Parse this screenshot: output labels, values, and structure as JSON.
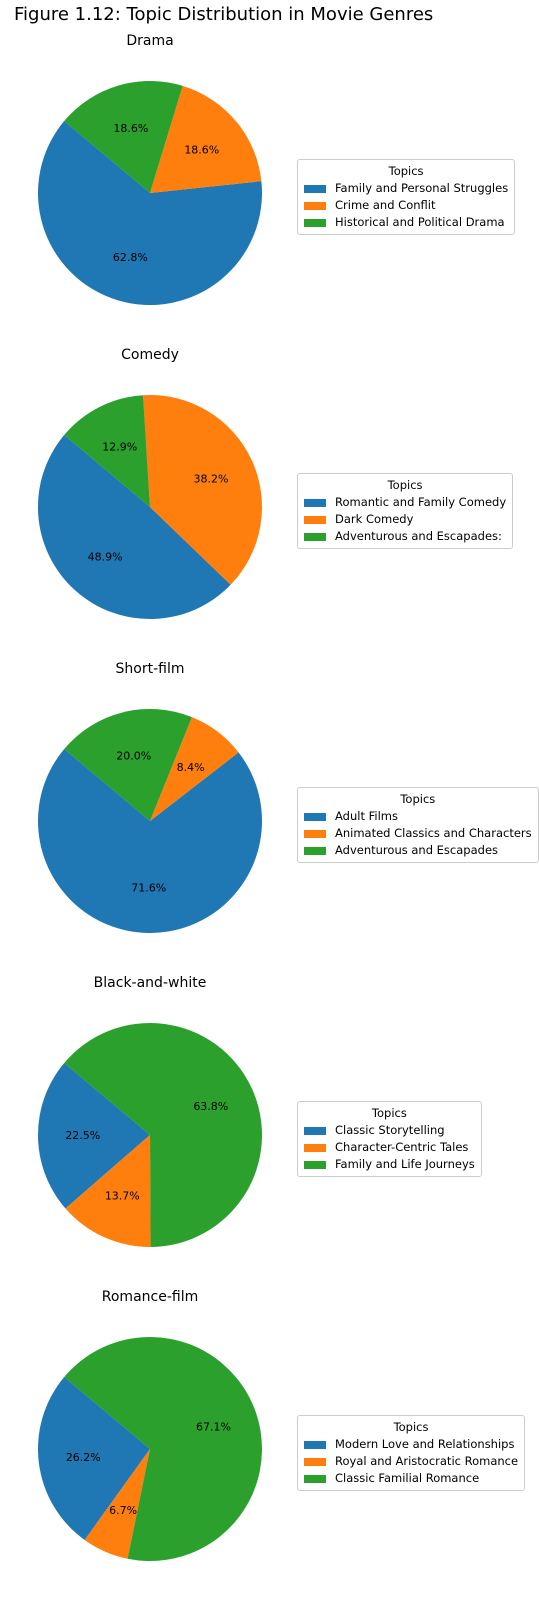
{
  "figure_title": "Figure 1.12: Topic Distribution in Movie Genres",
  "colors": [
    "#1f77b4",
    "#ff7f0e",
    "#2ca02c"
  ],
  "chart_data": [
    {
      "type": "pie",
      "title": "Drama",
      "legend_title": "Topics",
      "legend_position": "right",
      "start_angle_deg": 140,
      "labels": [
        "Family and Personal Struggles",
        "Crime and Conflit",
        "Historical and Political Drama"
      ],
      "values": [
        62.8,
        18.6,
        18.6
      ],
      "value_labels": [
        "62.8%",
        "18.6%",
        "18.6%"
      ]
    },
    {
      "type": "pie",
      "title": "Comedy",
      "legend_title": "Topics",
      "legend_position": "right",
      "start_angle_deg": 140,
      "labels": [
        "Romantic and Family Comedy",
        "Dark Comedy",
        "Adventurous and Escapades:"
      ],
      "values": [
        48.9,
        38.2,
        12.9
      ],
      "value_labels": [
        "48.9%",
        "38.2%",
        "12.9%"
      ]
    },
    {
      "type": "pie",
      "title": "Short-film",
      "legend_title": "Topics",
      "legend_position": "right",
      "start_angle_deg": 140,
      "labels": [
        "Adult Films",
        "Animated Classics and Characters",
        "Adventurous and Escapades"
      ],
      "values": [
        71.6,
        8.4,
        20.0
      ],
      "value_labels": [
        "71.6%",
        "8.4%",
        "20.0%"
      ]
    },
    {
      "type": "pie",
      "title": "Black-and-white",
      "legend_title": "Topics",
      "legend_position": "right",
      "start_angle_deg": 140,
      "labels": [
        "Classic Storytelling",
        "Character-Centric Tales",
        "Family and Life Journeys"
      ],
      "values": [
        22.5,
        13.7,
        63.8
      ],
      "value_labels": [
        "22.5%",
        "13.7%",
        "63.8%"
      ]
    },
    {
      "type": "pie",
      "title": "Romance-film",
      "legend_title": "Topics",
      "legend_position": "right",
      "start_angle_deg": 140,
      "labels": [
        "Modern Love and Relationships",
        "Royal and Aristocratic Romance",
        "Classic Familial Romance"
      ],
      "values": [
        26.2,
        6.7,
        67.1
      ],
      "value_labels": [
        "26.2%",
        "6.7%",
        "67.1%"
      ]
    }
  ]
}
